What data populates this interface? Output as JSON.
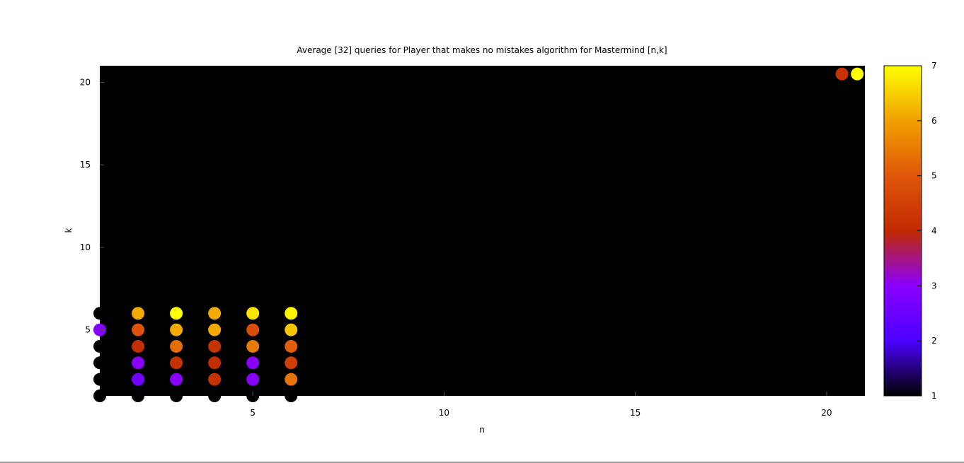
{
  "chart_data": {
    "type": "scatter",
    "title": "Average [32] queries for Player that makes no mistakes algorithm for Mastermind [n,k]",
    "xlabel": "n",
    "ylabel": "k",
    "xlim": [
      1,
      21
    ],
    "ylim": [
      1,
      21
    ],
    "xticks": [
      5,
      10,
      15,
      20
    ],
    "yticks": [
      5,
      10,
      15,
      20
    ],
    "colorbar": {
      "range": [
        1,
        7
      ],
      "ticks": [
        1,
        2,
        3,
        4,
        5,
        6,
        7
      ],
      "palette": [
        "#000000",
        "#4b00ff",
        "#8a00ff",
        "#c02a00",
        "#e0560a",
        "#f0a000",
        "#ffff00"
      ]
    },
    "background": "#000000",
    "grid": false,
    "points": [
      {
        "n": 1,
        "k": 1,
        "value": 1.0
      },
      {
        "n": 1,
        "k": 2,
        "value": 1.0
      },
      {
        "n": 1,
        "k": 3,
        "value": 1.0
      },
      {
        "n": 1,
        "k": 4,
        "value": 1.0
      },
      {
        "n": 1,
        "k": 5,
        "value": 2.9
      },
      {
        "n": 1,
        "k": 6,
        "value": 1.0
      },
      {
        "n": 2,
        "k": 1,
        "value": 1.0
      },
      {
        "n": 2,
        "k": 2,
        "value": 2.6
      },
      {
        "n": 2,
        "k": 3,
        "value": 3.0
      },
      {
        "n": 2,
        "k": 4,
        "value": 4.1
      },
      {
        "n": 2,
        "k": 5,
        "value": 4.9
      },
      {
        "n": 2,
        "k": 6,
        "value": 6.1
      },
      {
        "n": 3,
        "k": 1,
        "value": 1.0
      },
      {
        "n": 3,
        "k": 2,
        "value": 3.0
      },
      {
        "n": 3,
        "k": 3,
        "value": 4.2
      },
      {
        "n": 3,
        "k": 4,
        "value": 5.3
      },
      {
        "n": 3,
        "k": 5,
        "value": 6.1
      },
      {
        "n": 3,
        "k": 6,
        "value": 7.0
      },
      {
        "n": 4,
        "k": 1,
        "value": 1.0
      },
      {
        "n": 4,
        "k": 2,
        "value": 4.2
      },
      {
        "n": 4,
        "k": 3,
        "value": 4.1
      },
      {
        "n": 4,
        "k": 4,
        "value": 4.2
      },
      {
        "n": 4,
        "k": 5,
        "value": 6.1
      },
      {
        "n": 4,
        "k": 6,
        "value": 6.1
      },
      {
        "n": 5,
        "k": 1,
        "value": 1.0
      },
      {
        "n": 5,
        "k": 2,
        "value": 3.0
      },
      {
        "n": 5,
        "k": 3,
        "value": 3.0
      },
      {
        "n": 5,
        "k": 4,
        "value": 5.5
      },
      {
        "n": 5,
        "k": 5,
        "value": 4.8
      },
      {
        "n": 5,
        "k": 6,
        "value": 6.7
      },
      {
        "n": 6,
        "k": 1,
        "value": 1.0
      },
      {
        "n": 6,
        "k": 2,
        "value": 5.4
      },
      {
        "n": 6,
        "k": 3,
        "value": 4.5
      },
      {
        "n": 6,
        "k": 4,
        "value": 5.1
      },
      {
        "n": 6,
        "k": 5,
        "value": 6.4
      },
      {
        "n": 6,
        "k": 6,
        "value": 6.9
      },
      {
        "n": 20.4,
        "k": 20.5,
        "value": 4.2
      },
      {
        "n": 20.8,
        "k": 20.5,
        "value": 7.0
      }
    ]
  }
}
